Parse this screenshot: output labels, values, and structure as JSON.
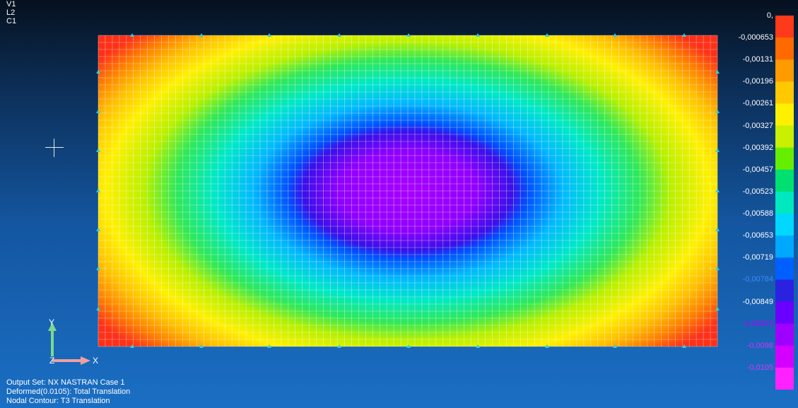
{
  "viewport": {
    "view_labels": [
      "V1",
      "L2",
      "C1"
    ]
  },
  "info": {
    "output_set": "Output Set: NX NASTRAN Case 1",
    "deformed": "Deformed(0.0105): Total Translation",
    "contour": "Nodal Contour: T3 Translation"
  },
  "triad": {
    "y_label": "Y",
    "z_label": "Z",
    "x_label": "X"
  },
  "legend": {
    "values": [
      "0,",
      "-0,000653",
      "-0,00131",
      "-0,00196",
      "-0,00261",
      "-0,00327",
      "-0,00392",
      "-0,00457",
      "-0,00523",
      "-0,00588",
      "-0,00653",
      "-0,00719",
      "-0,00784",
      "-0,00849",
      "-0,00915",
      "-0,0098",
      "-0,0105"
    ],
    "label_colors": [
      "#ffffff",
      "#ffffff",
      "#ffffff",
      "#ffffff",
      "#ffffff",
      "#ffffff",
      "#ffffff",
      "#ffffff",
      "#ffffff",
      "#ffffff",
      "#ffffff",
      "#ffffff",
      "#3a8cff",
      "#ffffff",
      "#b000ff",
      "#cc33ff",
      "#dd33ff"
    ],
    "colors": [
      "#ff3a1a",
      "#ff6a00",
      "#ff9a00",
      "#ffc800",
      "#fff000",
      "#c8f000",
      "#66ee00",
      "#00e070",
      "#00e8c0",
      "#00d8ff",
      "#00a8ff",
      "#0060ff",
      "#2a22e0",
      "#6a00ff",
      "#a000ff",
      "#d400ff",
      "#ff22ff"
    ]
  },
  "colors": {
    "mesh_line": "#ffffff",
    "constraint_marker": "#30d0e0"
  }
}
